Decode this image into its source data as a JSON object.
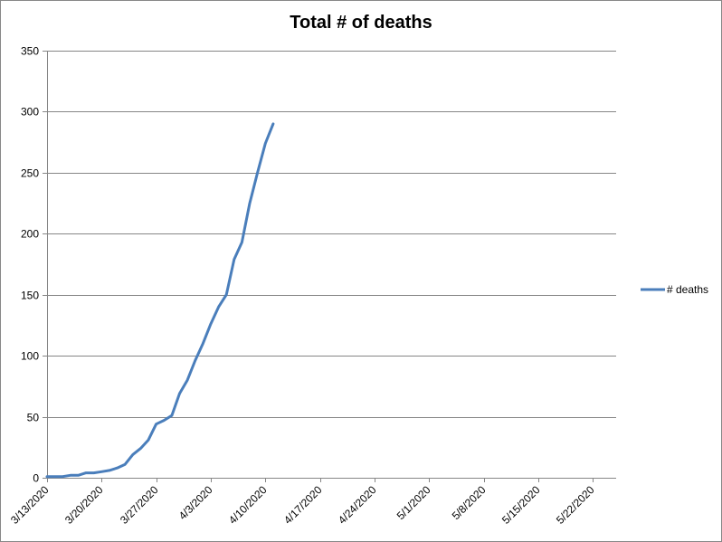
{
  "chart_data": {
    "type": "line",
    "title": "Total # of deaths",
    "xlabel": "",
    "ylabel": "",
    "ylim": [
      0,
      350
    ],
    "yticks": [
      0,
      50,
      100,
      150,
      200,
      250,
      300,
      350
    ],
    "xlim": [
      "2020-03-13",
      "2020-05-25"
    ],
    "x_tick_labels": [
      "3/13/2020",
      "3/20/2020",
      "3/27/2020",
      "4/3/2020",
      "4/10/2020",
      "4/17/2020",
      "4/24/2020",
      "5/1/2020",
      "5/8/2020",
      "5/15/2020",
      "5/22/2020"
    ],
    "x_tick_dates": [
      "2020-03-13",
      "2020-03-20",
      "2020-03-27",
      "2020-04-03",
      "2020-04-10",
      "2020-04-17",
      "2020-04-24",
      "2020-05-01",
      "2020-05-08",
      "2020-05-15",
      "2020-05-22"
    ],
    "grid": "horizontal",
    "legend": "right",
    "series": [
      {
        "name": "# deaths",
        "color": "#4a7ebb",
        "x": [
          "2020-03-13",
          "2020-03-14",
          "2020-03-15",
          "2020-03-16",
          "2020-03-17",
          "2020-03-18",
          "2020-03-19",
          "2020-03-20",
          "2020-03-21",
          "2020-03-22",
          "2020-03-23",
          "2020-03-24",
          "2020-03-25",
          "2020-03-26",
          "2020-03-27",
          "2020-03-28",
          "2020-03-29",
          "2020-03-30",
          "2020-03-31",
          "2020-04-01",
          "2020-04-02",
          "2020-04-03",
          "2020-04-04",
          "2020-04-05",
          "2020-04-06",
          "2020-04-07",
          "2020-04-08",
          "2020-04-09",
          "2020-04-10",
          "2020-04-11"
        ],
        "values": [
          1,
          1,
          1,
          2,
          2,
          4,
          4,
          5,
          6,
          8,
          11,
          19,
          24,
          31,
          44,
          47,
          51,
          69,
          80,
          96,
          110,
          126,
          140,
          150,
          179,
          193,
          225,
          250,
          274,
          290
        ]
      }
    ]
  }
}
